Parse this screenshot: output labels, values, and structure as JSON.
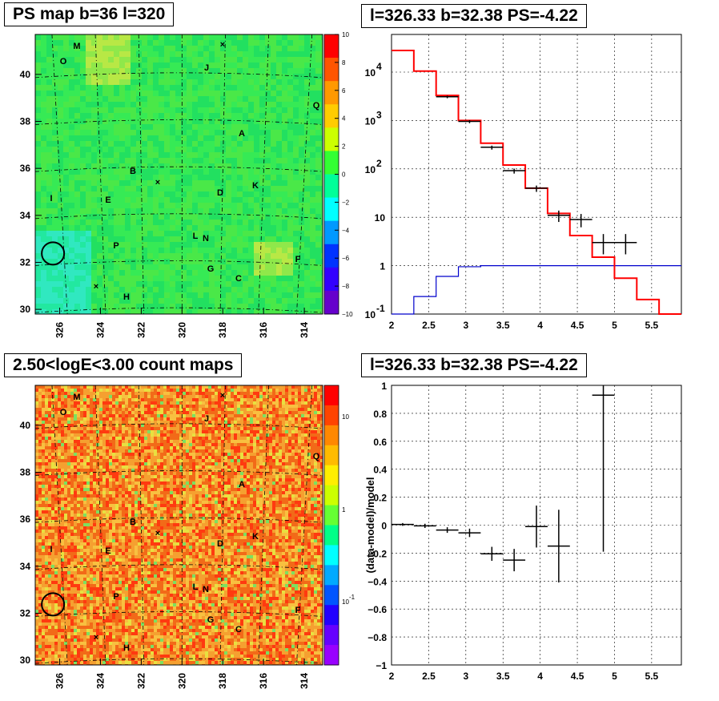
{
  "titles": {
    "ps_map": "PS map b=36 l=320",
    "spectrum": "l=326.33 b=32.38 PS=-4.22",
    "count_map": "2.50<logE<3.00 count maps",
    "residual": "l=326.33 b=32.38 PS=-4.22"
  },
  "colors": {
    "ps_map_background": "#22e85a",
    "count_map_background": "#f07a20",
    "data_points": "#000000",
    "model_line": "#ff0000",
    "background_model_line": "#0000cc",
    "circle": "#000000"
  },
  "sky_maps": {
    "lon_ticks": [
      "326",
      "324",
      "322",
      "320",
      "318",
      "316",
      "314"
    ],
    "lat_ticks": [
      "30",
      "32",
      "34",
      "36",
      "38",
      "40"
    ],
    "sources": [
      "M",
      "O",
      "J",
      "Q",
      "A",
      "B",
      "I",
      "E",
      "D",
      "K",
      "L",
      "N",
      "P",
      "G",
      "C",
      "F",
      "H"
    ],
    "ps_colorbar": {
      "ticks": [
        "10",
        "8",
        "6",
        "4",
        "2",
        "0",
        "−2",
        "−4",
        "−6",
        "−8",
        "−10"
      ],
      "colors": [
        "#ff0000",
        "#ff5500",
        "#ff9900",
        "#ffcc00",
        "#ccff00",
        "#33ff33",
        "#00ff99",
        "#00ffff",
        "#0099ff",
        "#0033ff",
        "#3300ff",
        "#6600cc"
      ]
    },
    "count_colorbar": {
      "ticks": [
        "10",
        "1",
        "10",
        "-1"
      ],
      "colors": [
        "#ff0000",
        "#ff4400",
        "#ff8800",
        "#ffbb00",
        "#ffee00",
        "#ccff00",
        "#66ff33",
        "#00ff88",
        "#00ffff",
        "#00aaff",
        "#0055ff",
        "#2200ff",
        "#6600ff",
        "#9900ff"
      ]
    }
  },
  "chart_data": [
    {
      "type": "heatmap",
      "title": "PS map b=36 l=320",
      "x_ticks": [
        326,
        324,
        322,
        320,
        318,
        316,
        314
      ],
      "y_ticks": [
        30,
        32,
        34,
        36,
        38,
        40
      ],
      "xlim": [
        327.2,
        313.1
      ],
      "ylim": [
        29.8,
        41.7
      ],
      "zlim": [
        -10,
        10
      ],
      "sources": [
        "M",
        "O",
        "J",
        "Q",
        "A",
        "B",
        "I",
        "E",
        "D",
        "K",
        "L",
        "N",
        "P",
        "G",
        "C",
        "F",
        "H"
      ],
      "markers": [
        "×",
        "×",
        "×"
      ],
      "circled_position": {
        "l": 326.33,
        "b": 32.38
      }
    },
    {
      "type": "line",
      "title": "l=326.33 b=32.38 PS=-4.22",
      "x_ticks": [
        2,
        2.5,
        3,
        3.5,
        4,
        4.5,
        5,
        5.5
      ],
      "y_ticks": [
        "10^-1",
        "1",
        "10",
        "10^2",
        "10^3",
        "10^4"
      ],
      "xlim": [
        2.0,
        5.9
      ],
      "ylim": [
        0.1,
        60000
      ],
      "log_y": true,
      "grid": true,
      "series": [
        {
          "x": [
            2.15,
            2.45,
            2.75,
            3.05,
            3.35,
            3.65,
            3.95,
            4.25,
            4.55,
            4.85,
            5.15,
            5.45,
            5.75
          ],
          "values": [
            28000,
            10500,
            3300,
            1000,
            340,
            120,
            40,
            12,
            4.2,
            1.5,
            0.55,
            0.2,
            0.07
          ]
        },
        {
          "x": [
            2.15,
            2.45,
            2.75,
            3.05,
            3.35,
            3.65,
            3.95,
            4.25,
            4.55,
            4.85,
            5.15,
            5.45,
            5.75
          ],
          "values": [
            0.05,
            0.23,
            0.6,
            0.95,
            1.0,
            1.0,
            1.0,
            1.0,
            1.0,
            1.0,
            1.0,
            1.0,
            1.0
          ]
        },
        {
          "x": [
            2.75,
            3.05,
            3.35,
            3.65,
            3.95,
            4.25,
            4.55,
            4.85,
            5.15
          ],
          "values": [
            3100,
            960,
            280,
            92,
            40,
            11,
            9,
            3,
            3
          ]
        }
      ]
    },
    {
      "type": "heatmap",
      "title": "2.50<logE<3.00 count maps",
      "x_ticks": [
        326,
        324,
        322,
        320,
        318,
        316,
        314
      ],
      "y_ticks": [
        30,
        32,
        34,
        36,
        38,
        40
      ],
      "xlim": [
        327.2,
        313.1
      ],
      "ylim": [
        29.8,
        41.7
      ],
      "z_ticks": [
        "10^-1",
        "1",
        "10"
      ],
      "log_z": true,
      "sources": [
        "M",
        "O",
        "J",
        "Q",
        "A",
        "B",
        "I",
        "E",
        "D",
        "K",
        "L",
        "N",
        "P",
        "G",
        "C",
        "F",
        "H"
      ],
      "circled_position": {
        "l": 326.33,
        "b": 32.38
      }
    },
    {
      "type": "scatter",
      "title": "l=326.33 b=32.38 PS=-4.22",
      "ylabel": "(data-model)/model",
      "x_ticks": [
        2,
        2.5,
        3,
        3.5,
        4,
        4.5,
        5,
        5.5
      ],
      "y_ticks": [
        -1,
        -0.8,
        -0.6,
        -0.4,
        -0.2,
        0,
        0.2,
        0.4,
        0.6,
        0.8,
        1
      ],
      "xlim": [
        2.0,
        5.9
      ],
      "ylim": [
        -1.0,
        1.0
      ],
      "grid": true,
      "points": [
        {
          "x": 2.15,
          "y": 0.005,
          "xerr": 0.15,
          "yerr": 0.01
        },
        {
          "x": 2.45,
          "y": -0.005,
          "xerr": 0.15,
          "yerr": 0.015
        },
        {
          "x": 2.75,
          "y": -0.035,
          "xerr": 0.15,
          "yerr": 0.02
        },
        {
          "x": 3.05,
          "y": -0.055,
          "xerr": 0.15,
          "yerr": 0.03
        },
        {
          "x": 3.35,
          "y": -0.205,
          "xerr": 0.15,
          "yerr": 0.05
        },
        {
          "x": 3.65,
          "y": -0.25,
          "xerr": 0.15,
          "yerr": 0.08
        },
        {
          "x": 3.95,
          "y": -0.01,
          "xerr": 0.15,
          "yerr": 0.15
        },
        {
          "x": 4.25,
          "y": -0.15,
          "xerr": 0.15,
          "yerr": 0.26
        },
        {
          "x": 4.85,
          "y": 0.93,
          "xerr": 0.15,
          "yerr": 1.12
        }
      ]
    }
  ]
}
